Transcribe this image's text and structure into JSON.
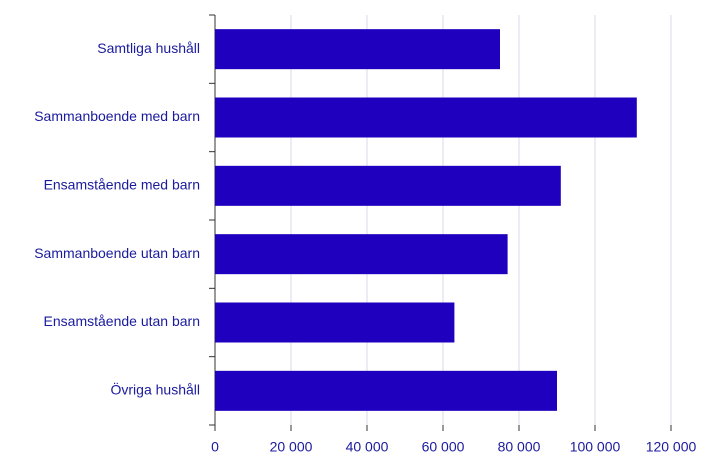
{
  "chart_data": {
    "type": "hbar",
    "categories": [
      "Samtliga hushåll",
      "Sammanboende med barn",
      "Ensamstående med barn",
      "Sammanboende utan barn",
      "Ensamstående utan barn",
      "Övriga hushåll"
    ],
    "values": [
      75000,
      111000,
      91000,
      77000,
      63000,
      90000
    ],
    "color": "#1e00be",
    "xlim": [
      0,
      120000
    ],
    "xticks": [
      0,
      {
        "value": 20000,
        "label": "20 000"
      },
      {
        "value": 40000,
        "label": "40 000"
      },
      {
        "value": 60000,
        "label": "60 000"
      },
      {
        "value": 80000,
        "label": "80 000"
      },
      {
        "value": 100000,
        "label": "100 000"
      },
      {
        "value": 120000,
        "label": "120 000"
      }
    ],
    "grid": true
  }
}
